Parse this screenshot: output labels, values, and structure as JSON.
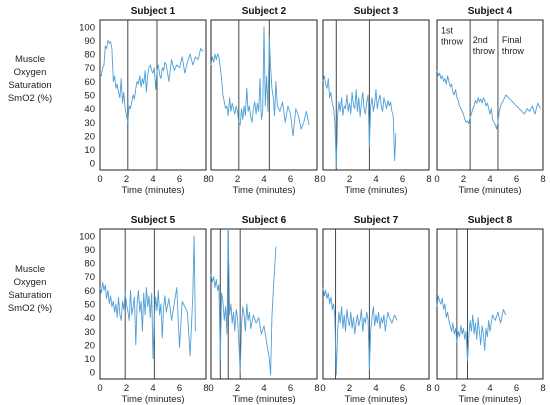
{
  "figure": {
    "ylabel_lines": [
      "Muscle",
      "Oxygen",
      "Saturation",
      "SmO2 (%)"
    ],
    "xlabel": "Time (minutes)",
    "line_color": "#4f9fd6",
    "marker_color": "#333333"
  },
  "chart_data": [
    {
      "type": "line",
      "title": "Subject 1",
      "xlabel": "Time (minutes)",
      "ylabel": "Muscle Oxygen Saturation SmO2 (%)",
      "xlim": [
        0,
        8
      ],
      "ylim": [
        -5,
        105
      ],
      "xticks": [
        0,
        2,
        4,
        6,
        8
      ],
      "yticks": [
        0,
        10,
        20,
        30,
        40,
        50,
        60,
        70,
        80,
        90,
        100
      ],
      "vlines": [
        2.1,
        4.3
      ],
      "annotations": [],
      "series": [
        {
          "x": [
            0,
            0.1,
            0.2,
            0.3,
            0.4,
            0.5,
            0.6,
            0.7,
            0.8,
            0.9,
            1.0,
            1.1,
            1.2,
            1.3,
            1.4,
            1.5,
            1.6,
            1.7,
            1.8,
            1.9,
            2.0,
            2.1,
            2.2,
            2.3,
            2.4,
            2.5,
            2.6,
            2.7,
            2.8,
            2.9,
            3.0,
            3.1,
            3.2,
            3.3,
            3.4,
            3.5,
            3.6,
            3.7,
            3.8,
            3.9,
            4.0,
            4.1,
            4.2,
            4.3,
            4.4,
            4.5,
            4.6,
            4.7,
            4.8,
            4.9,
            5.0,
            5.2,
            5.4,
            5.6,
            5.8,
            6.0,
            6.2,
            6.4,
            6.6,
            6.8,
            7.0,
            7.2,
            7.4,
            7.6,
            7.8
          ],
          "values": [
            66,
            64,
            70,
            72,
            86,
            84,
            90,
            88,
            89,
            84,
            60,
            64,
            55,
            58,
            52,
            48,
            62,
            44,
            52,
            40,
            35,
            30,
            42,
            40,
            45,
            50,
            47,
            55,
            60,
            58,
            64,
            56,
            62,
            58,
            68,
            52,
            65,
            70,
            72,
            68,
            66,
            70,
            54,
            68,
            72,
            65,
            62,
            70,
            68,
            74,
            72,
            60,
            76,
            68,
            72,
            70,
            78,
            66,
            74,
            80,
            72,
            78,
            76,
            84,
            82
          ]
        }
      ]
    },
    {
      "type": "line",
      "title": "Subject 2",
      "xlabel": "Time (minutes)",
      "ylabel": "",
      "xlim": [
        0,
        8
      ],
      "ylim": [
        -5,
        105
      ],
      "xticks": [
        0,
        2,
        4,
        6,
        8
      ],
      "yticks": [],
      "vlines": [
        2.1,
        4.4
      ],
      "annotations": [],
      "series": [
        {
          "x": [
            0,
            0.1,
            0.2,
            0.3,
            0.4,
            0.5,
            0.6,
            0.7,
            0.8,
            0.9,
            1.0,
            1.1,
            1.2,
            1.3,
            1.4,
            1.5,
            1.6,
            1.7,
            1.8,
            1.9,
            2.0,
            2.1,
            2.2,
            2.3,
            2.4,
            2.5,
            2.6,
            2.7,
            2.8,
            2.9,
            3.0,
            3.1,
            3.2,
            3.3,
            3.4,
            3.5,
            3.6,
            3.7,
            3.8,
            3.9,
            4.0,
            4.1,
            4.2,
            4.3,
            4.4,
            4.5,
            4.6,
            4.7,
            4.8,
            4.9,
            5.0,
            5.2,
            5.4,
            5.6,
            5.8,
            6.0,
            6.2,
            6.4,
            6.6,
            6.8,
            7.0,
            7.2,
            7.4
          ],
          "values": [
            72,
            78,
            74,
            80,
            76,
            80,
            78,
            70,
            62,
            50,
            45,
            40,
            42,
            35,
            48,
            38,
            44,
            40,
            36,
            42,
            38,
            30,
            28,
            40,
            32,
            42,
            35,
            55,
            38,
            42,
            34,
            30,
            40,
            45,
            36,
            44,
            38,
            62,
            32,
            38,
            100,
            42,
            64,
            38,
            92,
            70,
            55,
            48,
            35,
            60,
            42,
            38,
            45,
            30,
            42,
            36,
            20,
            40,
            35,
            25,
            30,
            38,
            28
          ]
        }
      ]
    },
    {
      "type": "line",
      "title": "Subject 3",
      "xlabel": "Time (minutes)",
      "ylabel": "",
      "xlim": [
        0,
        8
      ],
      "ylim": [
        -5,
        105
      ],
      "xticks": [
        0,
        2,
        4,
        6,
        8
      ],
      "yticks": [],
      "vlines": [
        1.0,
        3.5
      ],
      "annotations": [],
      "series": [
        {
          "x": [
            0,
            0.1,
            0.2,
            0.3,
            0.4,
            0.5,
            0.6,
            0.7,
            0.8,
            0.9,
            1.0,
            1.1,
            1.2,
            1.3,
            1.4,
            1.5,
            1.6,
            1.7,
            1.8,
            1.9,
            2.0,
            2.1,
            2.2,
            2.3,
            2.4,
            2.5,
            2.6,
            2.7,
            2.8,
            2.9,
            3.0,
            3.1,
            3.2,
            3.3,
            3.4,
            3.5,
            3.6,
            3.7,
            3.8,
            3.9,
            4.0,
            4.1,
            4.2,
            4.3,
            4.4,
            4.5,
            4.6,
            4.7,
            4.8,
            4.9,
            5.0,
            5.1,
            5.2,
            5.3,
            5.4,
            5.5
          ],
          "values": [
            60,
            64,
            58,
            55,
            62,
            48,
            52,
            44,
            40,
            30,
            -3,
            35,
            45,
            38,
            48,
            35,
            42,
            40,
            50,
            38,
            44,
            36,
            52,
            42,
            40,
            54,
            38,
            48,
            34,
            44,
            52,
            40,
            36,
            45,
            50,
            12,
            42,
            48,
            38,
            44,
            54,
            40,
            46,
            50,
            42,
            38,
            48,
            44,
            40,
            46,
            42,
            45,
            38,
            35,
            2,
            22
          ]
        }
      ]
    },
    {
      "type": "line",
      "title": "Subject 4",
      "xlabel": "Time (minutes)",
      "ylabel": "",
      "xlim": [
        0,
        8
      ],
      "ylim": [
        -5,
        105
      ],
      "xticks": [
        0,
        2,
        4,
        6,
        8
      ],
      "yticks": [],
      "vlines": [
        2.5,
        4.6
      ],
      "annotations": [
        {
          "x": 0.3,
          "y": 95,
          "lines": [
            "1st",
            "throw"
          ]
        },
        {
          "x": 2.7,
          "y": 88,
          "lines": [
            "2nd",
            "throw"
          ]
        },
        {
          "x": 4.9,
          "y": 88,
          "lines": [
            "Final",
            "throw"
          ]
        }
      ],
      "series": [
        {
          "x": [
            0,
            0.1,
            0.2,
            0.3,
            0.4,
            0.5,
            0.6,
            0.7,
            0.8,
            0.9,
            1.0,
            1.1,
            1.2,
            1.3,
            1.4,
            1.5,
            1.6,
            1.7,
            1.8,
            1.9,
            2.0,
            2.1,
            2.2,
            2.3,
            2.4,
            2.5,
            2.6,
            2.7,
            2.8,
            2.9,
            3.0,
            3.1,
            3.2,
            3.3,
            3.4,
            3.5,
            3.6,
            3.7,
            3.8,
            3.9,
            4.0,
            4.1,
            4.2,
            4.3,
            4.4,
            4.5,
            4.6,
            4.7,
            4.8,
            4.9,
            5.0,
            5.2,
            5.4,
            5.6,
            5.8,
            6.0,
            6.2,
            6.4,
            6.6,
            6.8,
            7.0,
            7.2,
            7.4,
            7.6,
            7.8
          ],
          "values": [
            68,
            64,
            66,
            62,
            64,
            60,
            62,
            58,
            64,
            60,
            56,
            58,
            52,
            50,
            54,
            48,
            46,
            42,
            40,
            38,
            36,
            32,
            30,
            31,
            29,
            34,
            36,
            40,
            42,
            46,
            44,
            48,
            45,
            47,
            44,
            48,
            46,
            42,
            44,
            40,
            36,
            40,
            32,
            30,
            28,
            25,
            30,
            38,
            42,
            44,
            46,
            50,
            48,
            46,
            44,
            42,
            40,
            38,
            36,
            40,
            38,
            42,
            36,
            44,
            40
          ]
        }
      ]
    },
    {
      "type": "line",
      "title": "Subject 5",
      "xlabel": "Time (minutes)",
      "ylabel": "Muscle Oxygen Saturation SmO2 (%)",
      "xlim": [
        0,
        8
      ],
      "ylim": [
        -5,
        105
      ],
      "xticks": [
        0,
        2,
        4,
        6,
        8
      ],
      "yticks": [
        0,
        10,
        20,
        30,
        40,
        50,
        60,
        70,
        80,
        90,
        100
      ],
      "vlines": [
        1.9,
        4.1
      ],
      "annotations": [],
      "series": [
        {
          "x": [
            0,
            0.1,
            0.2,
            0.3,
            0.4,
            0.5,
            0.6,
            0.7,
            0.8,
            0.9,
            1.0,
            1.1,
            1.2,
            1.3,
            1.4,
            1.5,
            1.6,
            1.7,
            1.8,
            1.9,
            2.0,
            2.1,
            2.2,
            2.3,
            2.4,
            2.5,
            2.6,
            2.7,
            2.8,
            2.9,
            3.0,
            3.1,
            3.2,
            3.3,
            3.4,
            3.5,
            3.6,
            3.7,
            3.8,
            3.9,
            4.0,
            4.1,
            4.2,
            4.3,
            4.4,
            4.5,
            4.6,
            4.7,
            4.8,
            4.9,
            5.0,
            5.2,
            5.4,
            5.6,
            5.8,
            6.0,
            6.2,
            6.4,
            6.6,
            6.8,
            7.0,
            7.1,
            7.2
          ],
          "values": [
            62,
            58,
            66,
            60,
            64,
            54,
            60,
            50,
            56,
            48,
            52,
            44,
            50,
            40,
            55,
            42,
            38,
            52,
            46,
            58,
            50,
            45,
            38,
            60,
            42,
            48,
            55,
            20,
            50,
            60,
            44,
            52,
            30,
            58,
            42,
            62,
            48,
            56,
            40,
            58,
            10,
            40,
            55,
            45,
            60,
            42,
            50,
            25,
            48,
            56,
            44,
            54,
            38,
            50,
            62,
            18,
            52,
            48,
            44,
            12,
            56,
            100,
            30
          ]
        }
      ]
    },
    {
      "type": "line",
      "title": "Subject 6",
      "xlabel": "Time (minutes)",
      "ylabel": "",
      "xlim": [
        0,
        8
      ],
      "ylim": [
        -5,
        105
      ],
      "xticks": [
        0,
        2,
        4,
        6,
        8
      ],
      "yticks": [],
      "vlines": [
        0.7,
        1.3,
        2.2
      ],
      "annotations": [],
      "series": [
        {
          "x": [
            0,
            0.1,
            0.2,
            0.3,
            0.4,
            0.5,
            0.6,
            0.7,
            0.8,
            0.9,
            1.0,
            1.1,
            1.2,
            1.3,
            1.4,
            1.5,
            1.6,
            1.7,
            1.8,
            1.9,
            2.0,
            2.1,
            2.2,
            2.3,
            2.4,
            2.5,
            2.6,
            2.7,
            2.8,
            2.9,
            3.0,
            3.2,
            3.4,
            3.6,
            3.8,
            4.0,
            4.2,
            4.4,
            4.5,
            4.6,
            4.7,
            4.9
          ],
          "values": [
            72,
            66,
            70,
            62,
            68,
            60,
            64,
            10,
            58,
            52,
            38,
            48,
            28,
            105,
            42,
            50,
            36,
            44,
            30,
            46,
            40,
            22,
            0,
            35,
            48,
            42,
            30,
            50,
            38,
            44,
            32,
            42,
            36,
            40,
            28,
            34,
            22,
            10,
            -2,
            40,
            60,
            92
          ]
        }
      ]
    },
    {
      "type": "line",
      "title": "Subject 7",
      "xlabel": "Time (minutes)",
      "ylabel": "",
      "xlim": [
        0,
        8
      ],
      "ylim": [
        -5,
        105
      ],
      "xticks": [
        0,
        2,
        4,
        6,
        8
      ],
      "yticks": [],
      "vlines": [
        0.95,
        3.5
      ],
      "annotations": [],
      "series": [
        {
          "x": [
            0,
            0.1,
            0.2,
            0.3,
            0.4,
            0.5,
            0.6,
            0.7,
            0.8,
            0.9,
            1.0,
            1.1,
            1.2,
            1.3,
            1.4,
            1.5,
            1.6,
            1.7,
            1.8,
            1.9,
            2.0,
            2.1,
            2.2,
            2.3,
            2.4,
            2.5,
            2.6,
            2.7,
            2.8,
            2.9,
            3.0,
            3.1,
            3.2,
            3.3,
            3.4,
            3.5,
            3.6,
            3.7,
            3.8,
            3.9,
            4.0,
            4.1,
            4.2,
            4.3,
            4.4,
            4.5,
            4.6,
            4.7,
            4.8,
            4.9,
            5.0,
            5.2,
            5.4,
            5.6
          ],
          "values": [
            62,
            56,
            60,
            54,
            58,
            50,
            55,
            46,
            50,
            40,
            -2,
            30,
            44,
            36,
            48,
            32,
            42,
            30,
            46,
            38,
            34,
            44,
            32,
            40,
            28,
            36,
            42,
            34,
            38,
            46,
            30,
            40,
            36,
            44,
            38,
            2,
            30,
            40,
            48,
            34,
            42,
            36,
            44,
            32,
            40,
            36,
            42,
            30,
            38,
            44,
            40,
            36,
            42,
            38
          ]
        }
      ]
    },
    {
      "type": "line",
      "title": "Subject 8",
      "xlabel": "Time (minutes)",
      "ylabel": "",
      "xlim": [
        0,
        8
      ],
      "ylim": [
        -5,
        105
      ],
      "xticks": [
        0,
        2,
        4,
        6,
        8
      ],
      "yticks": [],
      "vlines": [
        1.5,
        2.3
      ],
      "annotations": [],
      "series": [
        {
          "x": [
            0,
            0.1,
            0.2,
            0.3,
            0.4,
            0.5,
            0.6,
            0.7,
            0.8,
            0.9,
            1.0,
            1.1,
            1.2,
            1.3,
            1.4,
            1.5,
            1.6,
            1.7,
            1.8,
            1.9,
            2.0,
            2.1,
            2.2,
            2.3,
            2.4,
            2.5,
            2.6,
            2.7,
            2.8,
            2.9,
            3.0,
            3.1,
            3.2,
            3.3,
            3.4,
            3.5,
            3.6,
            3.7,
            3.8,
            3.9,
            4.0,
            4.2,
            4.4,
            4.6,
            4.8,
            5.0,
            5.2
          ],
          "values": [
            48,
            56,
            52,
            50,
            54,
            46,
            50,
            40,
            44,
            38,
            34,
            30,
            36,
            28,
            32,
            22,
            30,
            26,
            34,
            28,
            32,
            24,
            30,
            8,
            26,
            38,
            30,
            42,
            28,
            36,
            24,
            40,
            30,
            20,
            34,
            28,
            16,
            32,
            26,
            38,
            30,
            42,
            38,
            44,
            36,
            46,
            42
          ]
        }
      ]
    }
  ]
}
